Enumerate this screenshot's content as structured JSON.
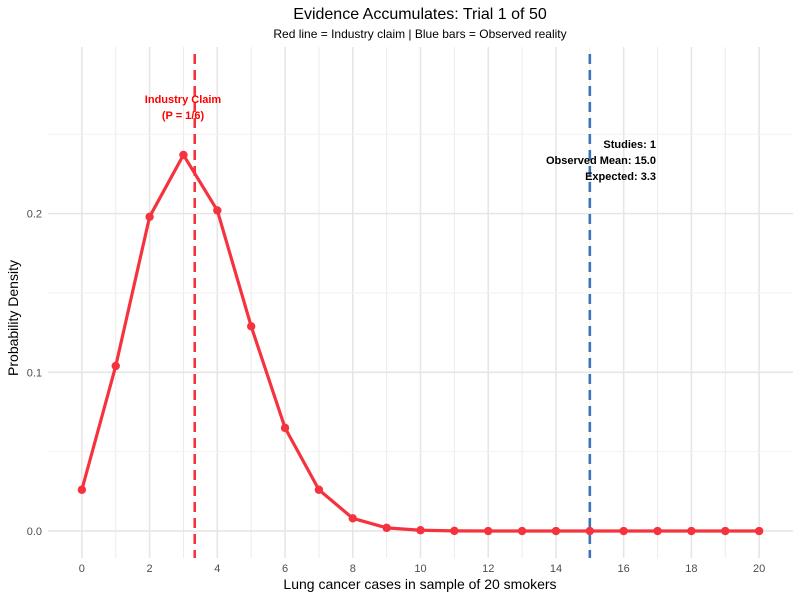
{
  "chart_data": {
    "type": "line",
    "title": "Evidence Accumulates: Trial 1 of 50",
    "subtitle": "Red line = Industry claim | Blue bars = Observed reality",
    "xlabel": "Lung cancer cases in sample of 20 smokers",
    "ylabel": "Probability Density",
    "xlim": [
      -1,
      21
    ],
    "ylim": [
      -0.017,
      0.305
    ],
    "x_ticks": [
      0,
      2,
      4,
      6,
      8,
      10,
      12,
      14,
      16,
      18,
      20
    ],
    "x_tick_labels": [
      "0",
      "2",
      "4",
      "6",
      "8",
      "10",
      "12",
      "14",
      "16",
      "18",
      "20"
    ],
    "y_ticks": [
      0.0,
      0.1,
      0.2
    ],
    "y_tick_labels": [
      "0.0",
      "0.1",
      "0.2"
    ],
    "grid": true,
    "series": [
      {
        "color": "#f5333f",
        "x": [
          0,
          1,
          2,
          3,
          4,
          5,
          6,
          7,
          8,
          9,
          10,
          11,
          12,
          13,
          14,
          15,
          16,
          17,
          18,
          19,
          20
        ],
        "values": [
          0.026,
          0.104,
          0.198,
          0.237,
          0.202,
          0.129,
          0.065,
          0.026,
          0.008,
          0.002,
          0.0005,
          0.0001,
          0.0,
          0.0,
          0.0,
          0.0,
          0.0,
          0.0,
          0.0,
          0.0,
          0.0
        ]
      }
    ],
    "reference_lines": [
      {
        "x": 3.333,
        "color": "#f5333f"
      },
      {
        "x": 15,
        "color": "#3b73b9"
      }
    ],
    "observed_bar": {
      "x": 15,
      "color": "#3b73b9"
    },
    "annotations": {
      "claim_line1": "Industry Claim",
      "claim_line2": "(P = 1/6)",
      "studies": "Studies: 1",
      "observed_mean": "Observed Mean: 15.0",
      "expected": "Expected: 3.3"
    }
  }
}
